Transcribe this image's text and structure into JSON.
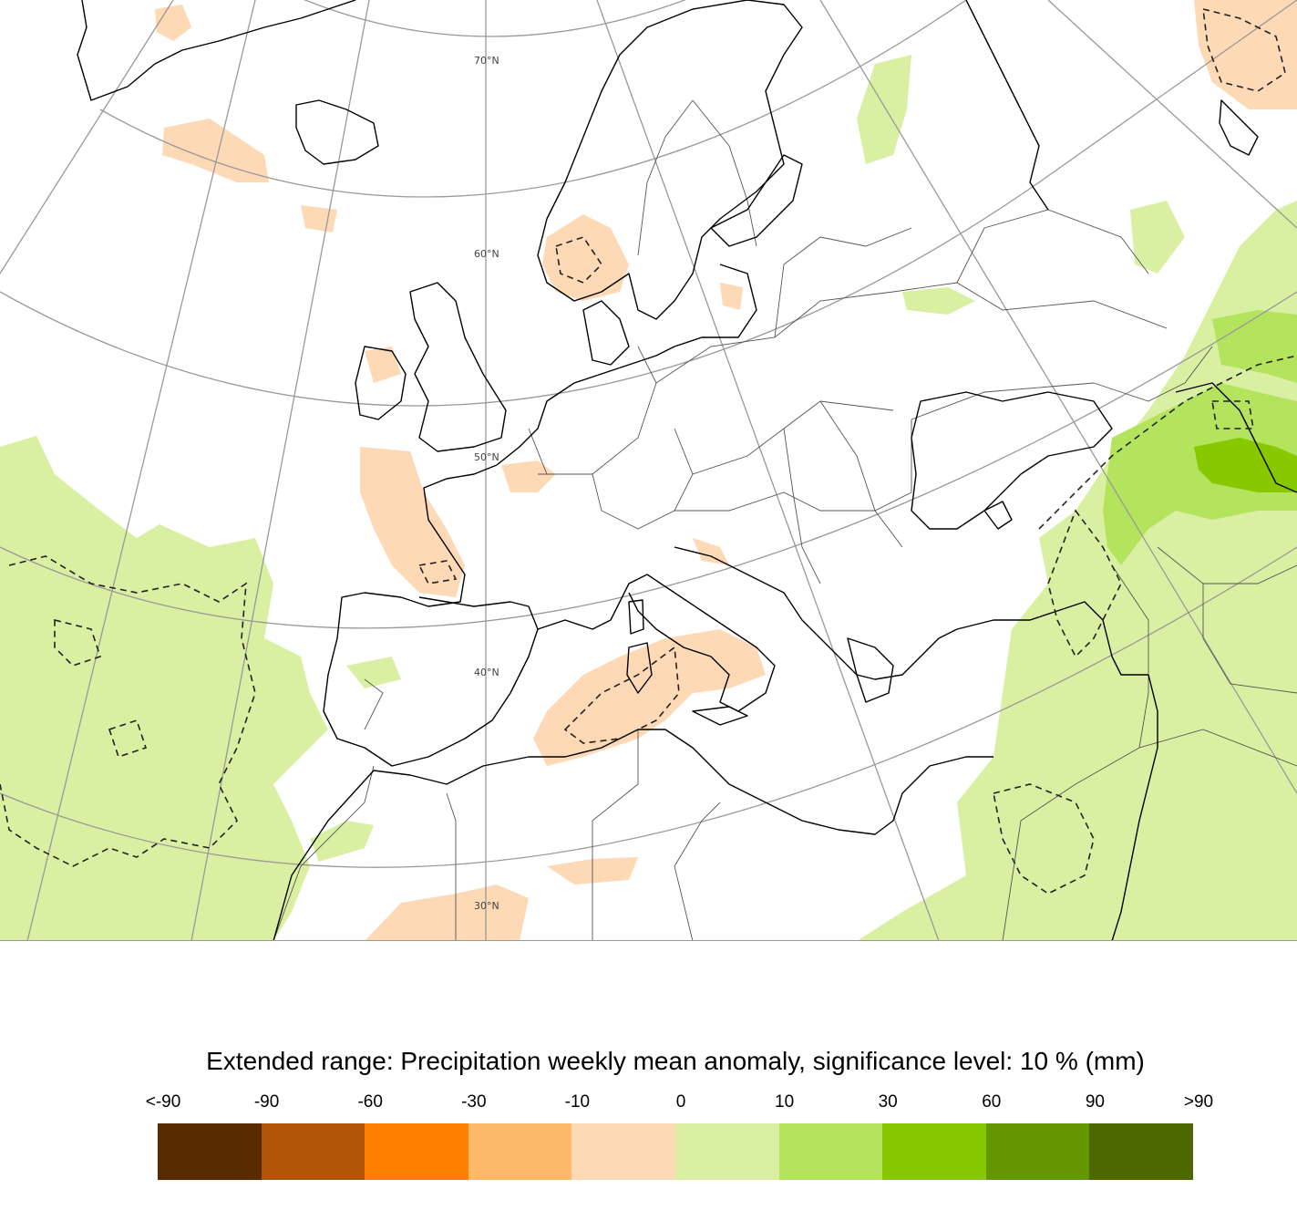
{
  "legend": {
    "title": "Extended range: Precipitation weekly mean anomaly, significance level: 10 % (mm)",
    "tick_labels": [
      "<-90",
      "-90",
      "-60",
      "-30",
      "-10",
      "0",
      "10",
      "30",
      "60",
      "90",
      ">90"
    ],
    "classes": [
      {
        "range": "<-90 to -90",
        "color": "#5a2a00"
      },
      {
        "range": "-90 to -60",
        "color": "#b05405"
      },
      {
        "range": "-60 to -30",
        "color": "#ff8000"
      },
      {
        "range": "-30 to -10",
        "color": "#fdb86a"
      },
      {
        "range": "-10 to 0",
        "color": "#fdd9b5"
      },
      {
        "range": "0 to 10",
        "color": "#d9f0a3"
      },
      {
        "range": "10 to 30",
        "color": "#b4e35e"
      },
      {
        "range": "30 to 60",
        "color": "#88c800"
      },
      {
        "range": "60 to 90",
        "color": "#649600"
      },
      {
        "range": "90 to >90",
        "color": "#4e6800"
      }
    ]
  },
  "map": {
    "region": "Europe",
    "latitude_labels": [
      "70°N",
      "60°N",
      "50°N",
      "40°N",
      "30°N"
    ],
    "significance_contour": "dashed",
    "colors": {
      "coastline": "#000000",
      "border": "#555555",
      "graticule": "#999999",
      "background": "#ffffff"
    }
  }
}
